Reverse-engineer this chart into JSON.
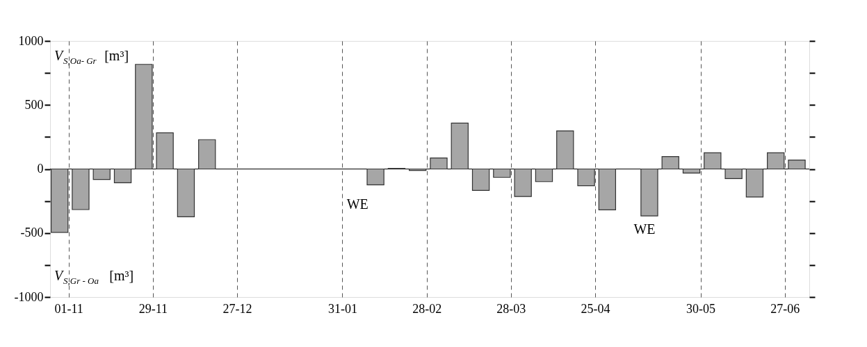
{
  "chart_data": {
    "type": "bar",
    "x": [
      "2001-10-29",
      "2001-11-05",
      "2001-11-12",
      "2001-11-19",
      "2001-11-26",
      "2001-12-03",
      "2001-12-10",
      "2001-12-17",
      "2001-12-24",
      "2001-12-31",
      "2002-01-07",
      "2002-01-14",
      "2002-01-21",
      "2002-01-28",
      "2002-02-04",
      "2002-02-11",
      "2002-02-18",
      "2002-02-25",
      "2002-03-04",
      "2002-03-11",
      "2002-03-18",
      "2002-03-25",
      "2002-04-01",
      "2002-04-08",
      "2002-04-15",
      "2002-04-22",
      "2002-04-29",
      "2002-05-06",
      "2002-05-13",
      "2002-05-20",
      "2002-05-27",
      "2002-06-03",
      "2002-06-10",
      "2002-06-17",
      "2002-06-24",
      "2002-07-01"
    ],
    "series": [
      {
        "color": "#a6a6a6",
        "values": [
          -495,
          -317,
          -82,
          -108,
          817,
          283,
          -373,
          229,
          null,
          null,
          null,
          null,
          null,
          null,
          null,
          -124,
          5,
          -11,
          86,
          358,
          -167,
          -65,
          -215,
          -99,
          297,
          -131,
          -319,
          null,
          -366,
          97,
          -32,
          127,
          -75,
          -219,
          127,
          70
        ]
      }
    ],
    "xlim": [
      "2001-10-27",
      "2002-07-04"
    ],
    "xticks": [
      {
        "value": "2001-11-01",
        "label": "01-11"
      },
      {
        "value": "2001-11-29",
        "label": "29-11"
      },
      {
        "value": "2001-12-27",
        "label": "27-12"
      },
      {
        "value": "2002-01-31",
        "label": "31-01"
      },
      {
        "value": "2002-02-28",
        "label": "28-02"
      },
      {
        "value": "2002-03-28",
        "label": "28-03"
      },
      {
        "value": "2002-04-25",
        "label": "25-04"
      },
      {
        "value": "2002-05-30",
        "label": "30-05"
      },
      {
        "value": "2002-06-27",
        "label": "27-06"
      }
    ],
    "ylim": [
      -1000,
      1000
    ],
    "yticks": [
      -1000,
      {
        "value": -750,
        "label": null
      },
      -500,
      {
        "value": -250,
        "label": null
      },
      0,
      {
        "value": 250,
        "label": null
      },
      500,
      {
        "value": 750,
        "label": null
      },
      1000
    ],
    "grid": "x",
    "ref_lines": [
      {
        "axis": "y",
        "value": 0,
        "color": "#000000"
      }
    ],
    "annotations": [
      "V$_{S,Oa- Gr}$ [m³]",
      "V$_{S,Gr - Oa}$ [m³]",
      "WE",
      "WE"
    ]
  }
}
